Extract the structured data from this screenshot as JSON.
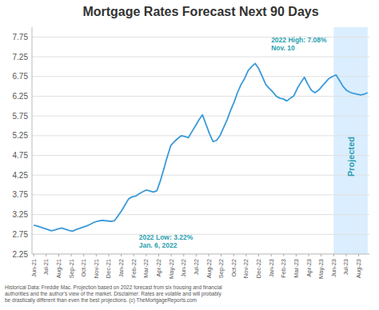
{
  "chart_data": {
    "type": "line",
    "title": "Mortgage Rates Forecast Next 90 Days",
    "color": "#3a9ad9",
    "values": [
      2.98,
      2.96,
      2.93,
      2.9,
      2.87,
      2.84,
      2.86,
      2.89,
      2.91,
      2.88,
      2.85,
      2.83,
      2.87,
      2.9,
      2.93,
      2.96,
      3.0,
      3.05,
      3.08,
      3.1,
      3.1,
      3.09,
      3.08,
      3.1,
      3.22,
      3.35,
      3.5,
      3.65,
      3.7,
      3.72,
      3.78,
      3.83,
      3.87,
      3.85,
      3.82,
      3.85,
      4.1,
      4.4,
      4.72,
      5.0,
      5.1,
      5.18,
      5.25,
      5.23,
      5.2,
      5.35,
      5.5,
      5.65,
      5.78,
      5.54,
      5.3,
      5.1,
      5.13,
      5.25,
      5.45,
      5.65,
      5.89,
      6.1,
      6.35,
      6.55,
      6.7,
      6.9,
      7.0,
      7.08,
      6.95,
      6.75,
      6.55,
      6.45,
      6.36,
      6.25,
      6.2,
      6.18,
      6.13,
      6.2,
      6.26,
      6.45,
      6.6,
      6.73,
      6.55,
      6.4,
      6.34,
      6.4,
      6.5,
      6.6,
      6.7,
      6.75,
      6.79,
      6.65,
      6.5,
      6.4,
      6.35,
      6.32,
      6.3,
      6.28,
      6.3,
      6.34
    ],
    "xlim": [
      -0.5,
      95.5
    ],
    "xticks": [
      {
        "value": 0,
        "label": "Jun-21"
      },
      {
        "value": 3.5555555556,
        "label": "Jul-21"
      },
      {
        "value": 7.1111111111,
        "label": "Aug-21"
      },
      {
        "value": 10.6666666667,
        "label": "Sep-21"
      },
      {
        "value": 14.2222222222,
        "label": "Oct-21"
      },
      {
        "value": 17.7777777778,
        "label": "Nov-21"
      },
      {
        "value": 21.3333333333,
        "label": "Dec-21"
      },
      {
        "value": 24.8888888889,
        "label": "Jan-22"
      },
      {
        "value": 28.4444444444,
        "label": "Feb-22"
      },
      {
        "value": 32,
        "label": "Mar-22"
      },
      {
        "value": 35.5555555556,
        "label": "Apr-22"
      },
      {
        "value": 39.1111111111,
        "label": "May-22"
      },
      {
        "value": 42.6666666667,
        "label": "Jun-22"
      },
      {
        "value": 46.2222222222,
        "label": "Jul-22"
      },
      {
        "value": 49.7777777778,
        "label": "Aug-22"
      },
      {
        "value": 53.3333333333,
        "label": "Sep-22"
      },
      {
        "value": 56.8888888889,
        "label": "Oct-22"
      },
      {
        "value": 60.4444444444,
        "label": "Nov-22"
      },
      {
        "value": 64,
        "label": "Dec-22"
      },
      {
        "value": 67.5555555556,
        "label": "Jan-23"
      },
      {
        "value": 71.1111111111,
        "label": "Feb-23"
      },
      {
        "value": 74.6666666667,
        "label": "Mar-23"
      },
      {
        "value": 78.2222222222,
        "label": "Apr-23"
      },
      {
        "value": 81.7777777778,
        "label": "May-23"
      },
      {
        "value": 85.3333333333,
        "label": "Jun-23"
      },
      {
        "value": 88.8888888889,
        "label": "Jul-23"
      },
      {
        "value": 92.4444444444,
        "label": "Aug-23"
      }
    ],
    "ylim": [
      2.25,
      8.0
    ],
    "yticks": [
      2.25,
      2.75,
      3.25,
      3.75,
      4.25,
      4.75,
      5.25,
      5.75,
      6.25,
      6.75,
      7.25,
      7.75
    ],
    "grid": true,
    "shaded_region": {
      "start": 85.3333333333,
      "end": 95,
      "label": "Projected",
      "color": "#daeeff"
    },
    "annotations": [
      {
        "text": "2022 Low: 3.22%\nJan. 6, 2022",
        "x": 24,
        "y": 3.22
      },
      {
        "text": "2022 High: 7.08%\nNov. 10",
        "x": 63,
        "y": 7.08
      }
    ],
    "footer": "Historical Data: Freddie Mac. Projection based on 2022 forecast from six housing and financial\nauthorities and the author's view of the market. Disclaimer: Rates are volatile and will probably\nbe drastically different than even the best projections. (c) TheMortgageReports.com"
  }
}
